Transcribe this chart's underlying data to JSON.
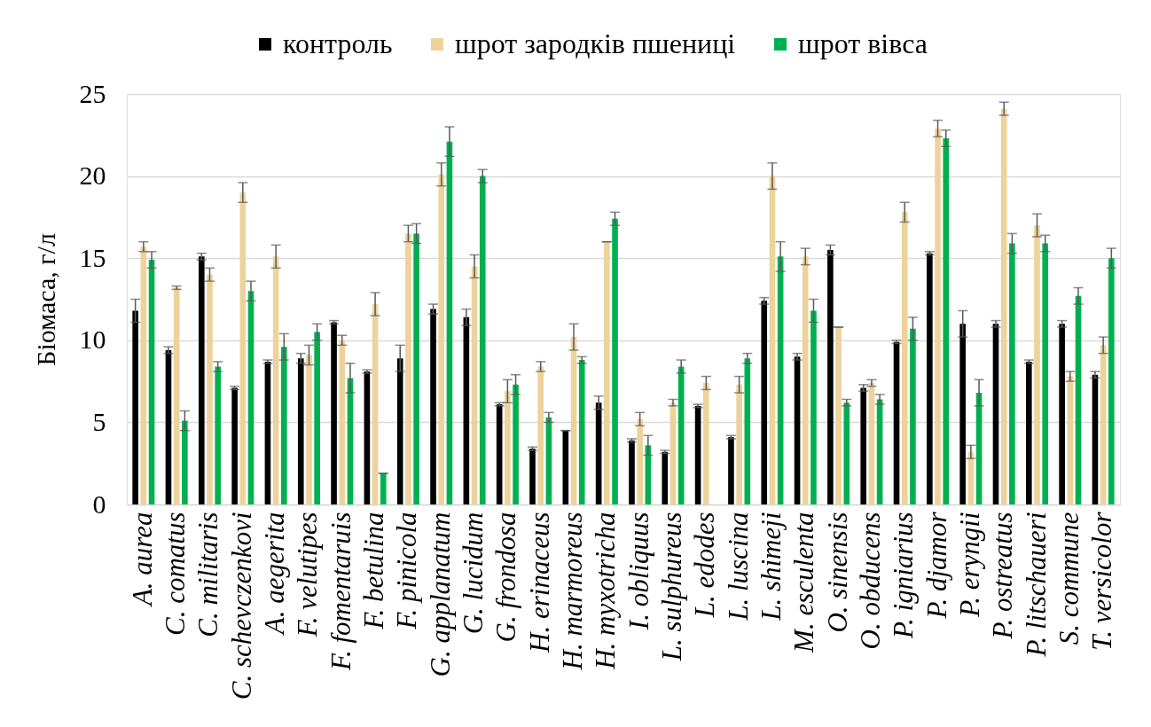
{
  "chart_data": {
    "type": "bar",
    "categories": [
      "A. aurea",
      "C. comatus",
      "C. militaris",
      "C. schevczenkovi",
      "A. aegerita",
      "F. velutipes",
      "F. fomentaruis",
      "F. betulina",
      "F. pinicola",
      "G. applanatum",
      "G. lucidum",
      "G. frondosa",
      "H. erinaceus",
      "H. marmoreus",
      "H. myxotricha",
      "I. obliquus",
      "L. sulphureus",
      "L. edodes",
      "L. luscina",
      "L. shimeji",
      "M. esculenta",
      "O. sinensis",
      "O. obducens",
      "P. igniarius",
      "P. djamor",
      "P. eryngii",
      "P. ostreatus",
      "P. litschaueri",
      "S. commune",
      "T. versicolor"
    ],
    "series": [
      {
        "name": "контроль",
        "color": "#000000",
        "values": [
          11.8,
          9.4,
          15.1,
          7.1,
          8.7,
          8.9,
          11.1,
          8.1,
          8.9,
          11.9,
          11.4,
          6.1,
          3.4,
          4.5,
          6.2,
          3.9,
          3.2,
          6.0,
          4.1,
          12.4,
          9.0,
          15.5,
          7.1,
          9.9,
          15.3,
          11.0,
          11.0,
          8.7,
          11.0,
          7.9
        ],
        "errors": [
          0.7,
          0.2,
          0.2,
          0.1,
          0.1,
          0.3,
          0.1,
          0.1,
          0.8,
          0.3,
          0.5,
          0.1,
          0.1,
          0,
          0.4,
          0.1,
          0.1,
          0.1,
          0.1,
          0.2,
          0.2,
          0.3,
          0.2,
          0.1,
          0.1,
          0.8,
          0.2,
          0.1,
          0.2,
          0.2
        ]
      },
      {
        "name": "шрот зародків пшениці",
        "color": "#edd39b",
        "values": [
          15.7,
          13.2,
          14.0,
          19.0,
          15.1,
          9.1,
          10.0,
          12.2,
          16.5,
          20.1,
          14.5,
          6.9,
          8.4,
          10.2,
          16.0,
          5.2,
          6.2,
          7.4,
          7.3,
          20.0,
          15.1,
          10.8,
          7.4,
          17.8,
          22.9,
          3.2,
          24.1,
          17.0,
          7.8,
          9.7
        ],
        "errors": [
          0.3,
          0.1,
          0.4,
          0.6,
          0.7,
          0.6,
          0.3,
          0.7,
          0.5,
          0.7,
          0.7,
          0.7,
          0.3,
          0.8,
          0,
          0.4,
          0.2,
          0.4,
          0.5,
          0.8,
          0.5,
          0,
          0.2,
          0.6,
          0.5,
          0.4,
          0.4,
          0.7,
          0.3,
          0.5
        ]
      },
      {
        "name": "шрот  вівса",
        "color": "#00b050",
        "values": [
          14.9,
          5.1,
          8.4,
          13.0,
          9.6,
          10.5,
          7.7,
          1.9,
          16.5,
          22.1,
          20.0,
          7.3,
          5.3,
          8.8,
          17.4,
          3.6,
          8.4,
          0,
          8.9,
          15.1,
          11.8,
          6.2,
          6.4,
          10.7,
          22.3,
          6.8,
          15.9,
          15.9,
          12.7,
          15.0
        ],
        "errors": [
          0.5,
          0.6,
          0.3,
          0.6,
          0.8,
          0.5,
          0.9,
          0,
          0.6,
          0.9,
          0.4,
          0.6,
          0.3,
          0.2,
          0.4,
          0.6,
          0.4,
          null,
          0.3,
          0.9,
          0.7,
          0.2,
          0.3,
          0.7,
          0.5,
          0.8,
          0.6,
          0.5,
          0.5,
          0.6
        ]
      }
    ],
    "ylabel": "Біомаса, г/л",
    "ylim": [
      0,
      25
    ],
    "yticks": [
      0,
      5,
      10,
      15,
      20,
      25
    ],
    "grid": "y",
    "legend": "top"
  }
}
